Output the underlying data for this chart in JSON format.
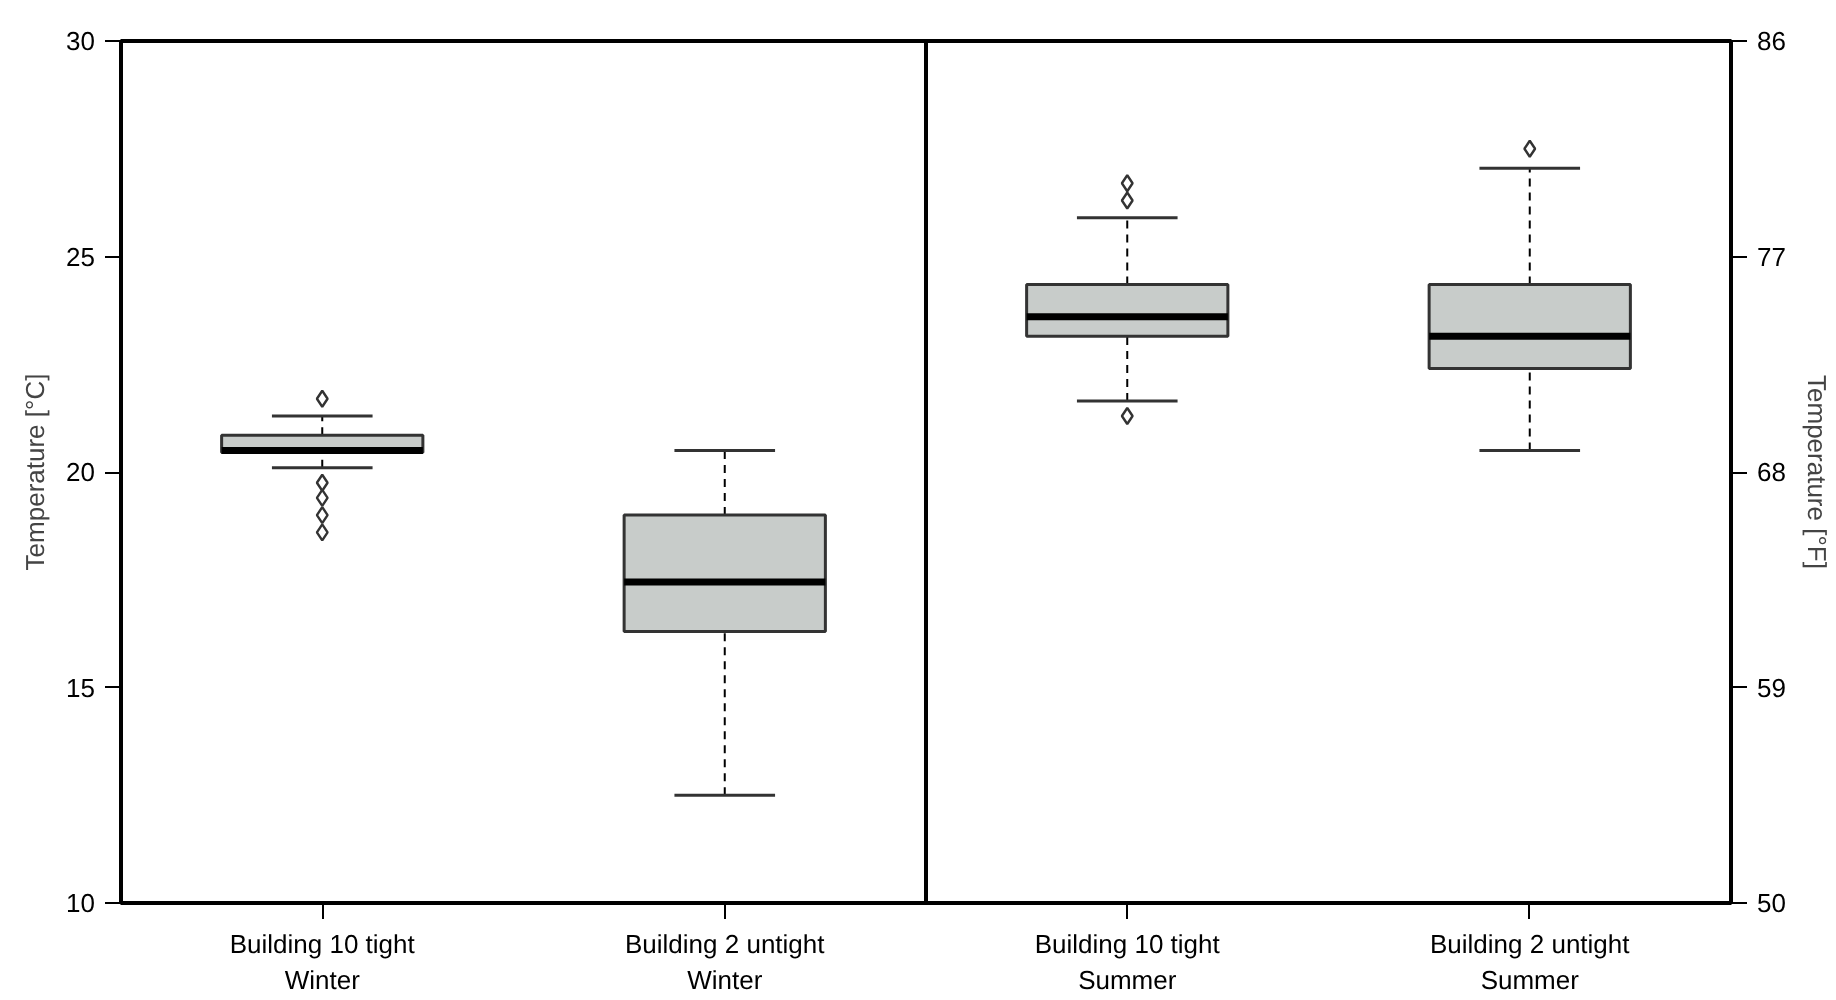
{
  "chart_data": {
    "type": "box",
    "ylabel": "Temperature [°C]",
    "y2label": "Temperature [°F]",
    "categories": [
      "Building 10 tight\nWinter",
      "Building 2 untight\nWinter",
      "Building 10 tight\nSummer",
      "Building 2 untight\nSummer"
    ],
    "boxes": [
      {
        "low": 20.1,
        "q1": 20.45,
        "median": 20.5,
        "q3": 20.85,
        "high": 21.3,
        "outliers": [
          21.7,
          19.75,
          19.4,
          19.0,
          18.6
        ]
      },
      {
        "low": 12.5,
        "q1": 16.3,
        "median": 17.45,
        "q3": 19.0,
        "high": 20.5
      },
      {
        "low": 21.65,
        "q1": 23.15,
        "median": 23.6,
        "q3": 24.35,
        "high": 25.9,
        "outliers": [
          26.7,
          26.3,
          21.3
        ]
      },
      {
        "low": 20.5,
        "q1": 22.4,
        "median": 23.15,
        "q3": 24.35,
        "high": 27.05,
        "outliers": [
          27.5
        ]
      }
    ],
    "color": "#c8ccca",
    "ylim": [
      10,
      30
    ],
    "yticks": [
      10,
      15,
      20,
      25,
      30
    ],
    "y2lim": [
      50,
      86
    ],
    "y2ticks": [
      50,
      59,
      68,
      77,
      86
    ],
    "marker": "diamond",
    "grid": false
  }
}
